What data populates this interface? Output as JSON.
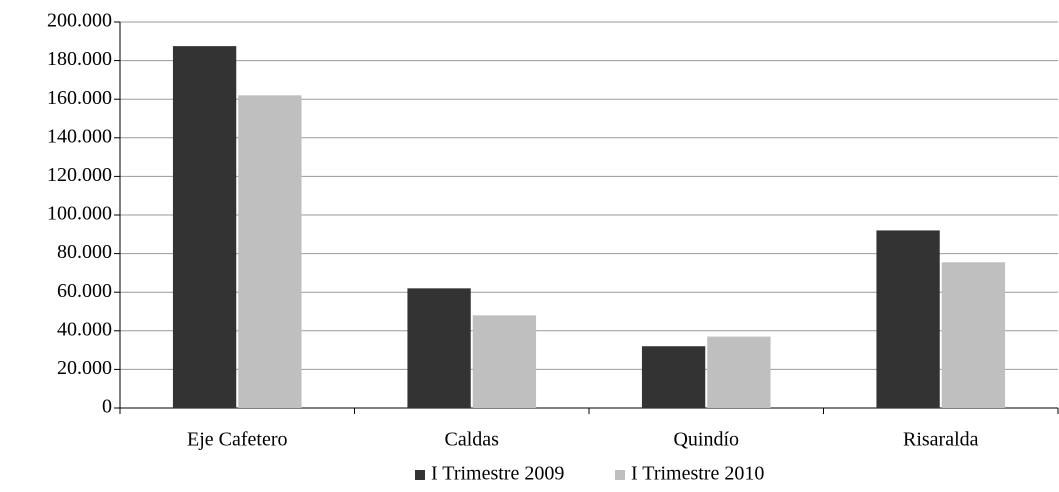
{
  "chart_data": {
    "type": "bar",
    "categories": [
      "Eje Cafetero",
      "Caldas",
      "Quindío",
      "Risaralda"
    ],
    "series": [
      {
        "name": "I Trimestre 2009",
        "color": "#333333",
        "values": [
          187500,
          62000,
          32000,
          92000
        ]
      },
      {
        "name": "I Trimestre 2010",
        "color": "#bfbfbf",
        "values": [
          162000,
          48000,
          37000,
          75500
        ]
      }
    ],
    "ylim": [
      0,
      200000
    ],
    "yticks": [
      0,
      {
        "value": 20000,
        "label": "20.000"
      },
      {
        "value": 40000,
        "label": "40.000"
      },
      {
        "value": 60000,
        "label": "60.000"
      },
      {
        "value": 80000,
        "label": "80.000"
      },
      {
        "value": 100000,
        "label": "100.000"
      },
      {
        "value": 120000,
        "label": "120.000"
      },
      {
        "value": 140000,
        "label": "140.000"
      },
      {
        "value": 160000,
        "label": "160.000"
      },
      {
        "value": 180000,
        "label": "180.000"
      },
      {
        "value": 200000,
        "label": "200.000"
      }
    ],
    "grid": true,
    "legend": "bottom"
  }
}
